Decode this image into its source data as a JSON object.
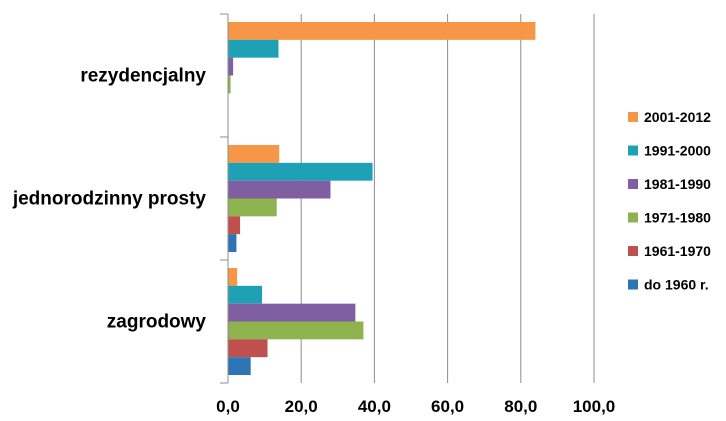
{
  "chart_data": {
    "type": "bar",
    "orientation": "horizontal",
    "categories": [
      "rezydencjalny",
      "jednorodzinny prosty",
      "zagrodowy"
    ],
    "xlim": [
      0,
      100
    ],
    "x_ticks": [
      "0,0",
      "20,0",
      "40,0",
      "60,0",
      "80,0",
      "100,0"
    ],
    "grid": true,
    "legend_position": "right",
    "series": [
      {
        "name": "2001-2012",
        "color": "#F79646",
        "values": [
          84.0,
          14.0,
          2.5
        ]
      },
      {
        "name": "1991-2000",
        "color": "#1FA1B5",
        "values": [
          13.8,
          39.5,
          9.3
        ]
      },
      {
        "name": "1981-1990",
        "color": "#7F5FA1",
        "values": [
          1.4,
          28.0,
          34.8
        ]
      },
      {
        "name": "1971-1980",
        "color": "#8DB24E",
        "values": [
          0.7,
          13.3,
          37.0
        ]
      },
      {
        "name": "1961-1970",
        "color": "#C0504D",
        "values": [
          0.0,
          3.3,
          10.8
        ]
      },
      {
        "name": "do 1960 r.",
        "color": "#2E75B6",
        "values": [
          0.0,
          2.3,
          6.2
        ]
      }
    ]
  }
}
